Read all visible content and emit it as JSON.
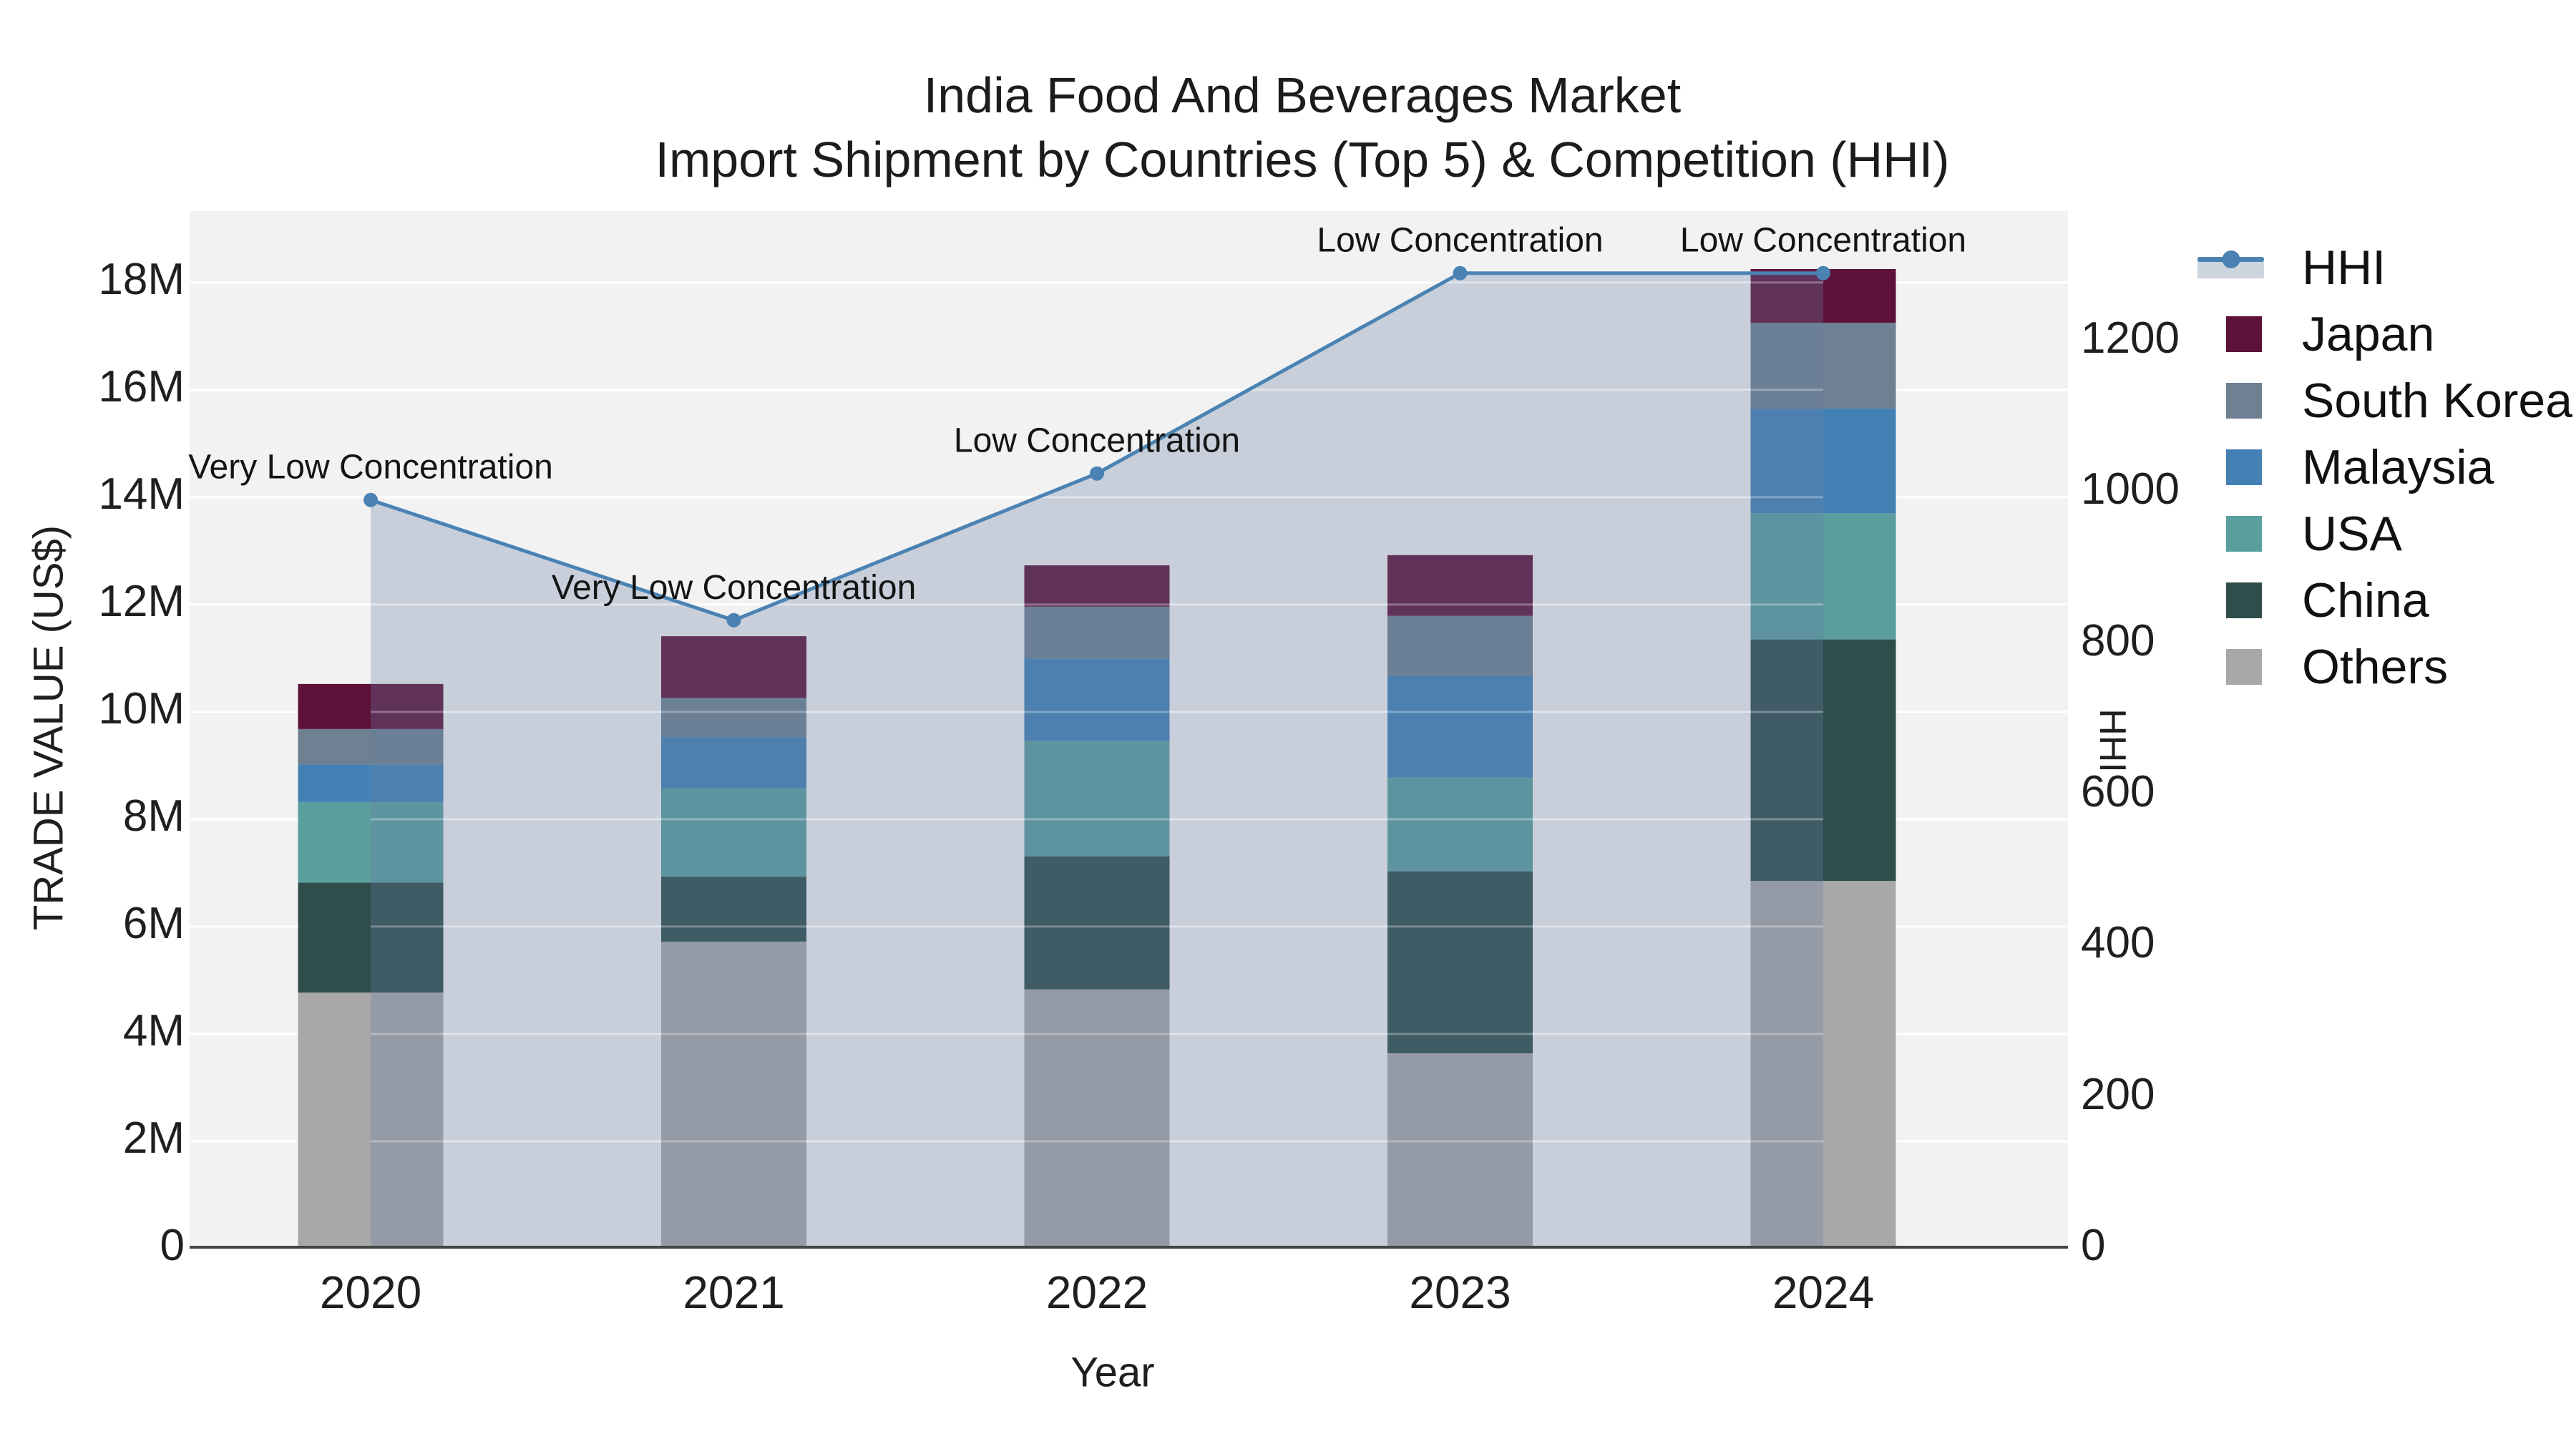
{
  "title": {
    "line1": "India Food And Beverages Market",
    "line2": "Import Shipment by Countries (Top 5) & Competition (HHI)"
  },
  "chart_data": {
    "type": "stacked-bar+line",
    "x_categories": [
      "2020",
      "2021",
      "2022",
      "2023",
      "2024"
    ],
    "x_axis": {
      "title": "Year"
    },
    "left_axis": {
      "title": "TRADE VALUE (US$)",
      "unit": "Million US$",
      "range_max_units": 19.33,
      "ticks": [
        {
          "value": 0,
          "label": "0"
        },
        {
          "value": 2,
          "label": "2M"
        },
        {
          "value": 4,
          "label": "4M"
        },
        {
          "value": 6,
          "label": "6M"
        },
        {
          "value": 8,
          "label": "8M"
        },
        {
          "value": 10,
          "label": "10M"
        },
        {
          "value": 12,
          "label": "12M"
        },
        {
          "value": 14,
          "label": "14M"
        },
        {
          "value": 16,
          "label": "16M"
        },
        {
          "value": 18,
          "label": "18M"
        }
      ]
    },
    "right_axis": {
      "title": "HHI",
      "range_max": 1372,
      "ticks": [
        {
          "value": 0,
          "label": "0"
        },
        {
          "value": 200,
          "label": "200"
        },
        {
          "value": 400,
          "label": "400"
        },
        {
          "value": 600,
          "label": "600"
        },
        {
          "value": 800,
          "label": "800"
        },
        {
          "value": 1000,
          "label": "1000"
        },
        {
          "value": 1200,
          "label": "1200"
        }
      ]
    },
    "bar_series": [
      {
        "name": "Others",
        "color": "#a8a8a8",
        "values": [
          4.77,
          5.72,
          4.83,
          3.64,
          6.85
        ]
      },
      {
        "name": "China",
        "color": "#2e4d4b",
        "values": [
          2.05,
          1.21,
          2.48,
          3.39,
          4.5
        ]
      },
      {
        "name": "USA",
        "color": "#5b9e9e",
        "values": [
          1.5,
          1.64,
          2.15,
          1.75,
          2.35
        ]
      },
      {
        "name": "Malaysia",
        "color": "#4381b5",
        "values": [
          0.7,
          0.96,
          1.53,
          1.89,
          1.95
        ]
      },
      {
        "name": "South Korea",
        "color": "#6e8091",
        "values": [
          0.66,
          0.73,
          0.97,
          1.12,
          1.6
        ]
      },
      {
        "name": "Japan",
        "color": "#5f1239",
        "values": [
          0.84,
          1.15,
          0.77,
          1.13,
          1.0
        ]
      }
    ],
    "line_series": {
      "name": "HHI",
      "color": "#4a83b3",
      "marker_color": "#4a83b3",
      "area_color": "rgba(102,125,162,0.30)",
      "values": [
        990,
        831,
        1025,
        1290,
        1290
      ],
      "annotations": [
        "Very Low Concentration",
        "Very Low Concentration",
        "Low Concentration",
        "Low Concentration",
        "Low Concentration"
      ]
    },
    "legend_order": [
      "HHI",
      "Japan",
      "South Korea",
      "Malaysia",
      "USA",
      "China",
      "Others"
    ],
    "colors": {
      "plot_bg": "#f2f2f2",
      "grid": "#ffffff",
      "axis_line": "#444444",
      "annotation_text": "#141414"
    }
  }
}
